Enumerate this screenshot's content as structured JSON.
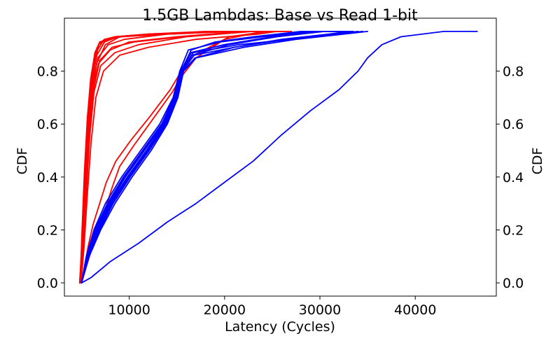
{
  "chart_data": {
    "type": "line",
    "title": "1.5GB Lambdas: Base vs Read 1-bit",
    "xlabel": "Latency (Cycles)",
    "ylabel": "CDF",
    "ylabel_right": "CDF",
    "xlim": [
      3200,
      48500
    ],
    "ylim": [
      -0.05,
      1.0
    ],
    "x_ticks": [
      10000,
      20000,
      30000,
      40000
    ],
    "x_tick_labels": [
      "10000",
      "20000",
      "30000",
      "40000"
    ],
    "y_ticks": [
      0.0,
      0.2,
      0.4,
      0.6,
      0.8
    ],
    "y_tick_labels": [
      "0.0",
      "0.2",
      "0.4",
      "0.6",
      "0.8"
    ],
    "grid": false,
    "colors": {
      "base": "#ff0000",
      "read": "#0000ff",
      "axis": "#000000"
    },
    "groups": [
      {
        "color": "#ff0000",
        "series": [
          {
            "x": [
              4800,
              5100,
              5400,
              5700,
              6100,
              6600,
              7500,
              9000,
              13000,
              20000,
              25000
            ],
            "y": [
              0,
              0.15,
              0.35,
              0.55,
              0.72,
              0.83,
              0.9,
              0.93,
              0.94,
              0.95,
              0.95
            ]
          },
          {
            "x": [
              4850,
              5150,
              5450,
              5800,
              6200,
              6800,
              8000,
              10000,
              15000,
              22000,
              26000
            ],
            "y": [
              0,
              0.15,
              0.36,
              0.56,
              0.74,
              0.83,
              0.88,
              0.91,
              0.93,
              0.95,
              0.95
            ]
          },
          {
            "x": [
              4900,
              5200,
              5500,
              5850,
              6300,
              7000,
              8500,
              11000,
              16000,
              23000,
              27000
            ],
            "y": [
              0,
              0.14,
              0.34,
              0.55,
              0.72,
              0.82,
              0.87,
              0.9,
              0.93,
              0.95,
              0.95
            ]
          },
          {
            "x": [
              4800,
              5080,
              5350,
              5650,
              6050,
              6500,
              7200,
              8500,
              12000,
              19000,
              24000
            ],
            "y": [
              0,
              0.18,
              0.4,
              0.6,
              0.77,
              0.87,
              0.91,
              0.93,
              0.94,
              0.95,
              0.95
            ]
          },
          {
            "x": [
              4950,
              5250,
              5600,
              6000,
              6500,
              7300,
              9000,
              12000,
              17000,
              23500,
              25500
            ],
            "y": [
              0,
              0.13,
              0.33,
              0.53,
              0.7,
              0.8,
              0.86,
              0.89,
              0.92,
              0.94,
              0.95
            ]
          },
          {
            "x": [
              4800,
              5120,
              5420,
              5750,
              6150,
              6700,
              7800,
              9500,
              14000,
              21000,
              24500
            ],
            "y": [
              0,
              0.16,
              0.37,
              0.58,
              0.75,
              0.85,
              0.9,
              0.92,
              0.94,
              0.95,
              0.95
            ]
          },
          {
            "x": [
              4870,
              5180,
              5480,
              5820,
              6250,
              6900,
              8200,
              10500,
              15500,
              22500,
              26500
            ],
            "y": [
              0,
              0.15,
              0.35,
              0.56,
              0.73,
              0.84,
              0.89,
              0.91,
              0.93,
              0.95,
              0.95
            ]
          },
          {
            "x": [
              4830,
              5100,
              5380,
              5700,
              6080,
              6600,
              7400,
              8800,
              13500,
              20500,
              25000
            ],
            "y": [
              0,
              0.17,
              0.38,
              0.59,
              0.76,
              0.86,
              0.91,
              0.93,
              0.94,
              0.95,
              0.95
            ]
          },
          {
            "x": [
              5000,
              5400,
              6000,
              6800,
              7500,
              8200,
              9000,
              10500,
              12500,
              14500,
              15500,
              17000,
              20000,
              24000
            ],
            "y": [
              0,
              0.05,
              0.12,
              0.2,
              0.28,
              0.36,
              0.44,
              0.52,
              0.62,
              0.72,
              0.78,
              0.85,
              0.92,
              0.95
            ]
          },
          {
            "x": [
              5000,
              5300,
              5700,
              6200,
              6900,
              7600,
              8600,
              10200,
              12200,
              14300,
              15300,
              16800,
              20500,
              24500
            ],
            "y": [
              0,
              0.06,
              0.14,
              0.22,
              0.3,
              0.38,
              0.46,
              0.54,
              0.63,
              0.73,
              0.79,
              0.86,
              0.93,
              0.95
            ]
          },
          {
            "x": [
              4900,
              5200,
              5500,
              5800,
              6100,
              6400,
              6800,
              7400,
              8500,
              12000,
              18000,
              24000
            ],
            "y": [
              0,
              0.15,
              0.38,
              0.58,
              0.73,
              0.83,
              0.9,
              0.92,
              0.93,
              0.94,
              0.95,
              0.95
            ]
          },
          {
            "x": [
              4850,
              5050,
              5300,
              5600,
              5950,
              6400,
              6900,
              7700,
              9200,
              14000,
              21000,
              25000
            ],
            "y": [
              0,
              0.2,
              0.42,
              0.62,
              0.77,
              0.87,
              0.91,
              0.92,
              0.93,
              0.94,
              0.95,
              0.95
            ]
          }
        ]
      },
      {
        "color": "#0000ff",
        "series": [
          {
            "x": [
              5000,
              5600,
              6500,
              7800,
              9500,
              11500,
              13500,
              14800,
              15500,
              16500,
              20000,
              25000,
              30000,
              33000
            ],
            "y": [
              0,
              0.1,
              0.2,
              0.3,
              0.4,
              0.5,
              0.6,
              0.7,
              0.8,
              0.87,
              0.9,
              0.93,
              0.95,
              0.95
            ]
          },
          {
            "x": [
              5000,
              5700,
              6800,
              8200,
              10000,
              12000,
              13800,
              15000,
              15600,
              16800,
              21000,
              26500,
              31500,
              34000
            ],
            "y": [
              0,
              0.1,
              0.2,
              0.3,
              0.4,
              0.5,
              0.6,
              0.7,
              0.8,
              0.86,
              0.89,
              0.92,
              0.94,
              0.95
            ]
          },
          {
            "x": [
              5000,
              5500,
              6300,
              7500,
              9200,
              11200,
              13200,
              14600,
              15300,
              16200,
              19500,
              24000,
              29000,
              32000
            ],
            "y": [
              0,
              0.1,
              0.2,
              0.3,
              0.4,
              0.5,
              0.6,
              0.7,
              0.8,
              0.88,
              0.91,
              0.93,
              0.95,
              0.95
            ]
          },
          {
            "x": [
              5000,
              5800,
              7000,
              8500,
              10300,
              12300,
              14000,
              15100,
              15700,
              17000,
              22000,
              27500,
              32500,
              35000
            ],
            "y": [
              0,
              0.1,
              0.2,
              0.3,
              0.4,
              0.5,
              0.6,
              0.7,
              0.8,
              0.85,
              0.89,
              0.92,
              0.94,
              0.95
            ]
          },
          {
            "x": [
              5000,
              5600,
              6600,
              8000,
              9800,
              11800,
              13600,
              14900,
              15500,
              16600,
              20500,
              25500,
              30500,
              33500
            ],
            "y": [
              0,
              0.1,
              0.2,
              0.3,
              0.4,
              0.5,
              0.6,
              0.7,
              0.8,
              0.86,
              0.9,
              0.93,
              0.95,
              0.95
            ]
          },
          {
            "x": [
              5000,
              5650,
              6700,
              8100,
              9900,
              11900,
              13700,
              14950,
              15550,
              16700,
              21500,
              27000,
              31000,
              33000
            ],
            "y": [
              0,
              0.1,
              0.2,
              0.3,
              0.4,
              0.5,
              0.6,
              0.7,
              0.8,
              0.87,
              0.9,
              0.92,
              0.94,
              0.95
            ]
          },
          {
            "x": [
              5000,
              5550,
              6400,
              7700,
              9400,
              11400,
              13400,
              14700,
              15400,
              16400,
              20000,
              25000,
              29500,
              32500
            ],
            "y": [
              0,
              0.1,
              0.2,
              0.3,
              0.4,
              0.5,
              0.6,
              0.7,
              0.8,
              0.87,
              0.9,
              0.93,
              0.95,
              0.95
            ]
          },
          {
            "x": [
              5000,
              5750,
              6900,
              8300,
              10100,
              12100,
              13900,
              15050,
              15650,
              16900,
              21000,
              26000,
              31000,
              34500
            ],
            "y": [
              0,
              0.1,
              0.2,
              0.3,
              0.4,
              0.5,
              0.6,
              0.7,
              0.8,
              0.85,
              0.89,
              0.92,
              0.94,
              0.95
            ]
          },
          {
            "x": [
              5000,
              5600,
              6550,
              7900,
              9600,
              11600,
              13500,
              14850,
              15450,
              16500,
              19000,
              23000,
              28000,
              31500
            ],
            "y": [
              0,
              0.1,
              0.2,
              0.3,
              0.4,
              0.5,
              0.6,
              0.7,
              0.8,
              0.88,
              0.91,
              0.93,
              0.95,
              0.95
            ]
          },
          {
            "x": [
              5000,
              6000,
              8000,
              11000,
              14000,
              17000,
              20000,
              23000,
              26000,
              29000,
              32000,
              34000,
              35000,
              36500,
              38500,
              43000,
              46500
            ],
            "y": [
              0,
              0.02,
              0.08,
              0.15,
              0.23,
              0.3,
              0.38,
              0.46,
              0.56,
              0.65,
              0.73,
              0.8,
              0.85,
              0.9,
              0.93,
              0.95,
              0.95
            ]
          }
        ]
      }
    ]
  }
}
